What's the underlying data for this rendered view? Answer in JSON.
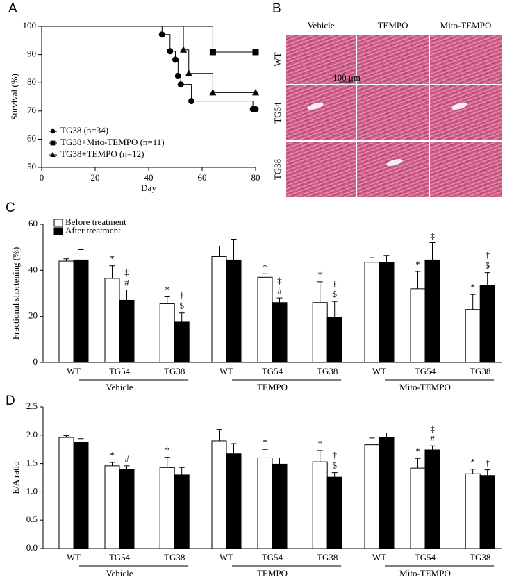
{
  "panel_labels": [
    "A",
    "B",
    "C",
    "D"
  ],
  "chart_data": [
    {
      "type": "survival",
      "xlabel": "Day",
      "ylabel": "Survival (%)",
      "xlim": [
        0,
        80
      ],
      "ylim": [
        50,
        100
      ],
      "xticks": [
        0,
        20,
        40,
        60,
        80
      ],
      "yticks": [
        50,
        60,
        70,
        80,
        90,
        100
      ],
      "legend": "bottom-left",
      "series": [
        {
          "name": "TG38 (n=34)",
          "marker": "circle",
          "color": "#000000",
          "x": [
            0,
            45,
            48,
            50,
            51,
            52,
            56,
            79,
            80
          ],
          "values": [
            100,
            97.1,
            91.2,
            88.2,
            82.4,
            79.4,
            73.5,
            70.6,
            70.6
          ]
        },
        {
          "name": "TG38+Mito-TEMPO (n=11)",
          "marker": "square",
          "color": "#000000",
          "x": [
            0,
            64,
            80
          ],
          "values": [
            100,
            90.9,
            90.9
          ]
        },
        {
          "name": "TG38+TEMPO (n=12)",
          "marker": "triangle",
          "color": "#000000",
          "x": [
            0,
            53,
            55,
            64,
            80
          ],
          "values": [
            100,
            91.7,
            83.3,
            76.5,
            76.5
          ]
        }
      ]
    },
    {
      "type": "bar",
      "ylabel": "Fractional shortening (%)",
      "ylim": [
        0,
        60
      ],
      "yticks": [
        0,
        20,
        40,
        60
      ],
      "legend": "top-left",
      "categories": [
        "WT",
        "TG54",
        "TG38",
        "WT",
        "TG54",
        "TG38",
        "WT",
        "TG54",
        "TG38"
      ],
      "groups": [
        "Vehicle",
        "TEMPO",
        "Mito-TEMPO"
      ],
      "series": [
        {
          "name": "Before treatment",
          "color": "#ffffff",
          "values": [
            44,
            36.5,
            25.5,
            46,
            37,
            26,
            43.5,
            32,
            23
          ],
          "errors": [
            1,
            5.5,
            3,
            4.5,
            1.5,
            9,
            2,
            7.5,
            6.5
          ],
          "annotations": [
            null,
            [
              "*"
            ],
            [
              "*"
            ],
            null,
            [
              "*"
            ],
            [
              "*"
            ],
            null,
            [
              "*"
            ],
            [
              "*"
            ]
          ]
        },
        {
          "name": "After treatment",
          "color": "#000000",
          "values": [
            44.5,
            27,
            17.5,
            44.5,
            26,
            19.5,
            43.5,
            44.5,
            33.5
          ],
          "errors": [
            4.5,
            4.5,
            4,
            9,
            2,
            7,
            3,
            7.5,
            5.5
          ],
          "annotations": [
            null,
            [
              "‡",
              "#"
            ],
            [
              "†",
              "$"
            ],
            null,
            [
              "‡",
              "#"
            ],
            [
              "†",
              "$"
            ],
            null,
            [
              "‡"
            ],
            [
              "†",
              "$"
            ]
          ]
        }
      ]
    },
    {
      "type": "bar",
      "ylabel": "E/A ratio",
      "ylim": [
        0,
        2.5
      ],
      "yticks": [
        {
          "value": 0,
          "label": "0.0"
        },
        0.5,
        {
          "value": 1,
          "label": "1.0"
        },
        1.5,
        {
          "value": 2,
          "label": "2.0"
        },
        2.5
      ],
      "categories": [
        "WT",
        "TG54",
        "TG38",
        "WT",
        "TG54",
        "TG38",
        "WT",
        "TG54",
        "TG38"
      ],
      "groups": [
        "Vehicle",
        "TEMPO",
        "Mito-TEMPO"
      ],
      "series": [
        {
          "color": "#ffffff",
          "values": [
            1.96,
            1.46,
            1.43,
            1.9,
            1.6,
            1.53,
            1.83,
            1.42,
            1.32
          ],
          "errors": [
            0.03,
            0.06,
            0.18,
            0.2,
            0.15,
            0.2,
            0.12,
            0.17,
            0.08
          ],
          "annotations": [
            null,
            [
              "*"
            ],
            [
              "*"
            ],
            null,
            [
              "*"
            ],
            [
              "*"
            ],
            null,
            [
              "*"
            ],
            [
              "*"
            ]
          ]
        },
        {
          "color": "#000000",
          "values": [
            1.87,
            1.4,
            1.3,
            1.67,
            1.49,
            1.26,
            1.96,
            1.74,
            1.29
          ],
          "errors": [
            0.07,
            0.06,
            0.13,
            0.18,
            0.11,
            0.08,
            0.08,
            0.07,
            0.1
          ],
          "annotations": [
            null,
            [
              "#"
            ],
            null,
            null,
            null,
            [
              "†",
              "$"
            ],
            null,
            [
              "‡",
              "#"
            ],
            [
              "†"
            ]
          ]
        }
      ]
    }
  ],
  "histology": {
    "columns": [
      "Vehicle",
      "TEMPO",
      "Mito-TEMPO"
    ],
    "rows": [
      "WT",
      "TG54",
      "TG38"
    ],
    "scale_bar": "100 μm"
  }
}
